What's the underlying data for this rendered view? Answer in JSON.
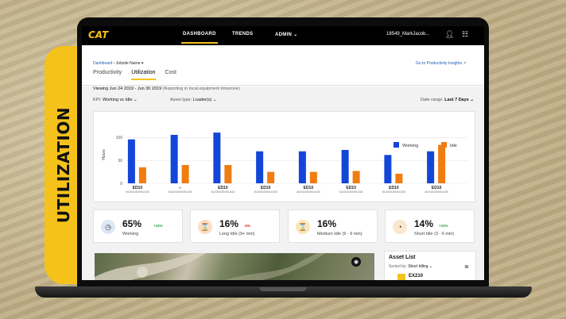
{
  "banner": {
    "text": "UTILIZATION"
  },
  "nav": {
    "logo": "CAT",
    "items": [
      {
        "label": "DASHBOARD",
        "active": true
      },
      {
        "label": "TRENDS",
        "active": false
      },
      {
        "label": "ADMIN ⌄",
        "active": false
      }
    ],
    "user": "18549_MarkJacob...",
    "user_icon": "user-icon",
    "apps_icon": "grid-icon"
  },
  "subheader": {
    "breadcrumb_link": "Dashboard",
    "breadcrumb_sep": " ›  ",
    "breadcrumb_current": "Jobsite Name ▾",
    "insights_link": "Go to Productivity Insights",
    "tabs": [
      "Productivity",
      "Utilization",
      "Cost"
    ],
    "active_tab": "Utilization"
  },
  "viewing": {
    "range": "Viewing Jun 24 2019 - Jun 30 2019",
    "note": "(Reporting in local equipment timezone)"
  },
  "filters": {
    "kpi_label": "KPI:",
    "kpi_value": "Working vs Idle ⌄",
    "asset_label": "Asset type:",
    "asset_value": "Loader(s) ⌄",
    "date_label": "Date range:",
    "date_value": "Last 7 Days ⌄"
  },
  "chart_data": {
    "type": "bar",
    "ylabel": "Hours",
    "yticks": [
      0,
      50,
      100
    ],
    "ylim": [
      0,
      125
    ],
    "grid": true,
    "legend_position": "top-right",
    "categories": [
      {
        "name": "ED10",
        "sub": "MUS0003NH93J408"
      },
      {
        "name": "--",
        "sub": "MUS0003NH93J408"
      },
      {
        "name": "ED10",
        "sub": "MUS0003NH93J408"
      },
      {
        "name": "ED10",
        "sub": "MUS0003NH93J408"
      },
      {
        "name": "ED10",
        "sub": "MUS0003NH93J408"
      },
      {
        "name": "ED10",
        "sub": "MUS0003NH93J408"
      },
      {
        "name": "ED10",
        "sub": "MUS0003NH93J408"
      },
      {
        "name": "ED10",
        "sub": "MUS0003NH93J408"
      }
    ],
    "series": [
      {
        "name": "Working",
        "color": "#1346d8",
        "values": [
          96,
          106,
          111,
          70,
          70,
          73,
          62,
          70
        ]
      },
      {
        "name": "Idle",
        "color": "#f07c12",
        "values": [
          35,
          40,
          40,
          25,
          25,
          27,
          21,
          84
        ]
      }
    ]
  },
  "kpis": [
    {
      "value": "65%",
      "delta": "+10%",
      "delta_color": "#2e9e3e",
      "label": "Working",
      "icon": "clock-icon",
      "icon_glyph": "◷",
      "icon_bg": "#dde7f5"
    },
    {
      "value": "16%",
      "delta": "-5%",
      "delta_color": "#d62b2b",
      "label": "Long Idle (9+ min)",
      "icon": "hourglass-icon",
      "icon_glyph": "⌛",
      "icon_bg": "#fbdcc4"
    },
    {
      "value": "16%",
      "delta": "",
      "delta_color": "#2e9e3e",
      "label": "Medium Idle (6 - 9 min)",
      "icon": "hourglass-icon",
      "icon_glyph": "⌛",
      "icon_bg": "#fbe6b8"
    },
    {
      "value": "14%",
      "delta": "+10%",
      "delta_color": "#2e9e3e",
      "label": "Short Idle (3 - 6 min)",
      "icon": "timer-icon",
      "icon_glyph": "◔",
      "icon_bg": "#fbe6cf"
    }
  ],
  "asset_list": {
    "title": "Asset List",
    "sort_label": "Sorted by:",
    "sort_value": "Short Idling ⌄",
    "first_row": "EX210"
  },
  "colors": {
    "accent": "#f5c21b",
    "working": "#1346d8",
    "idle": "#f07c12"
  }
}
